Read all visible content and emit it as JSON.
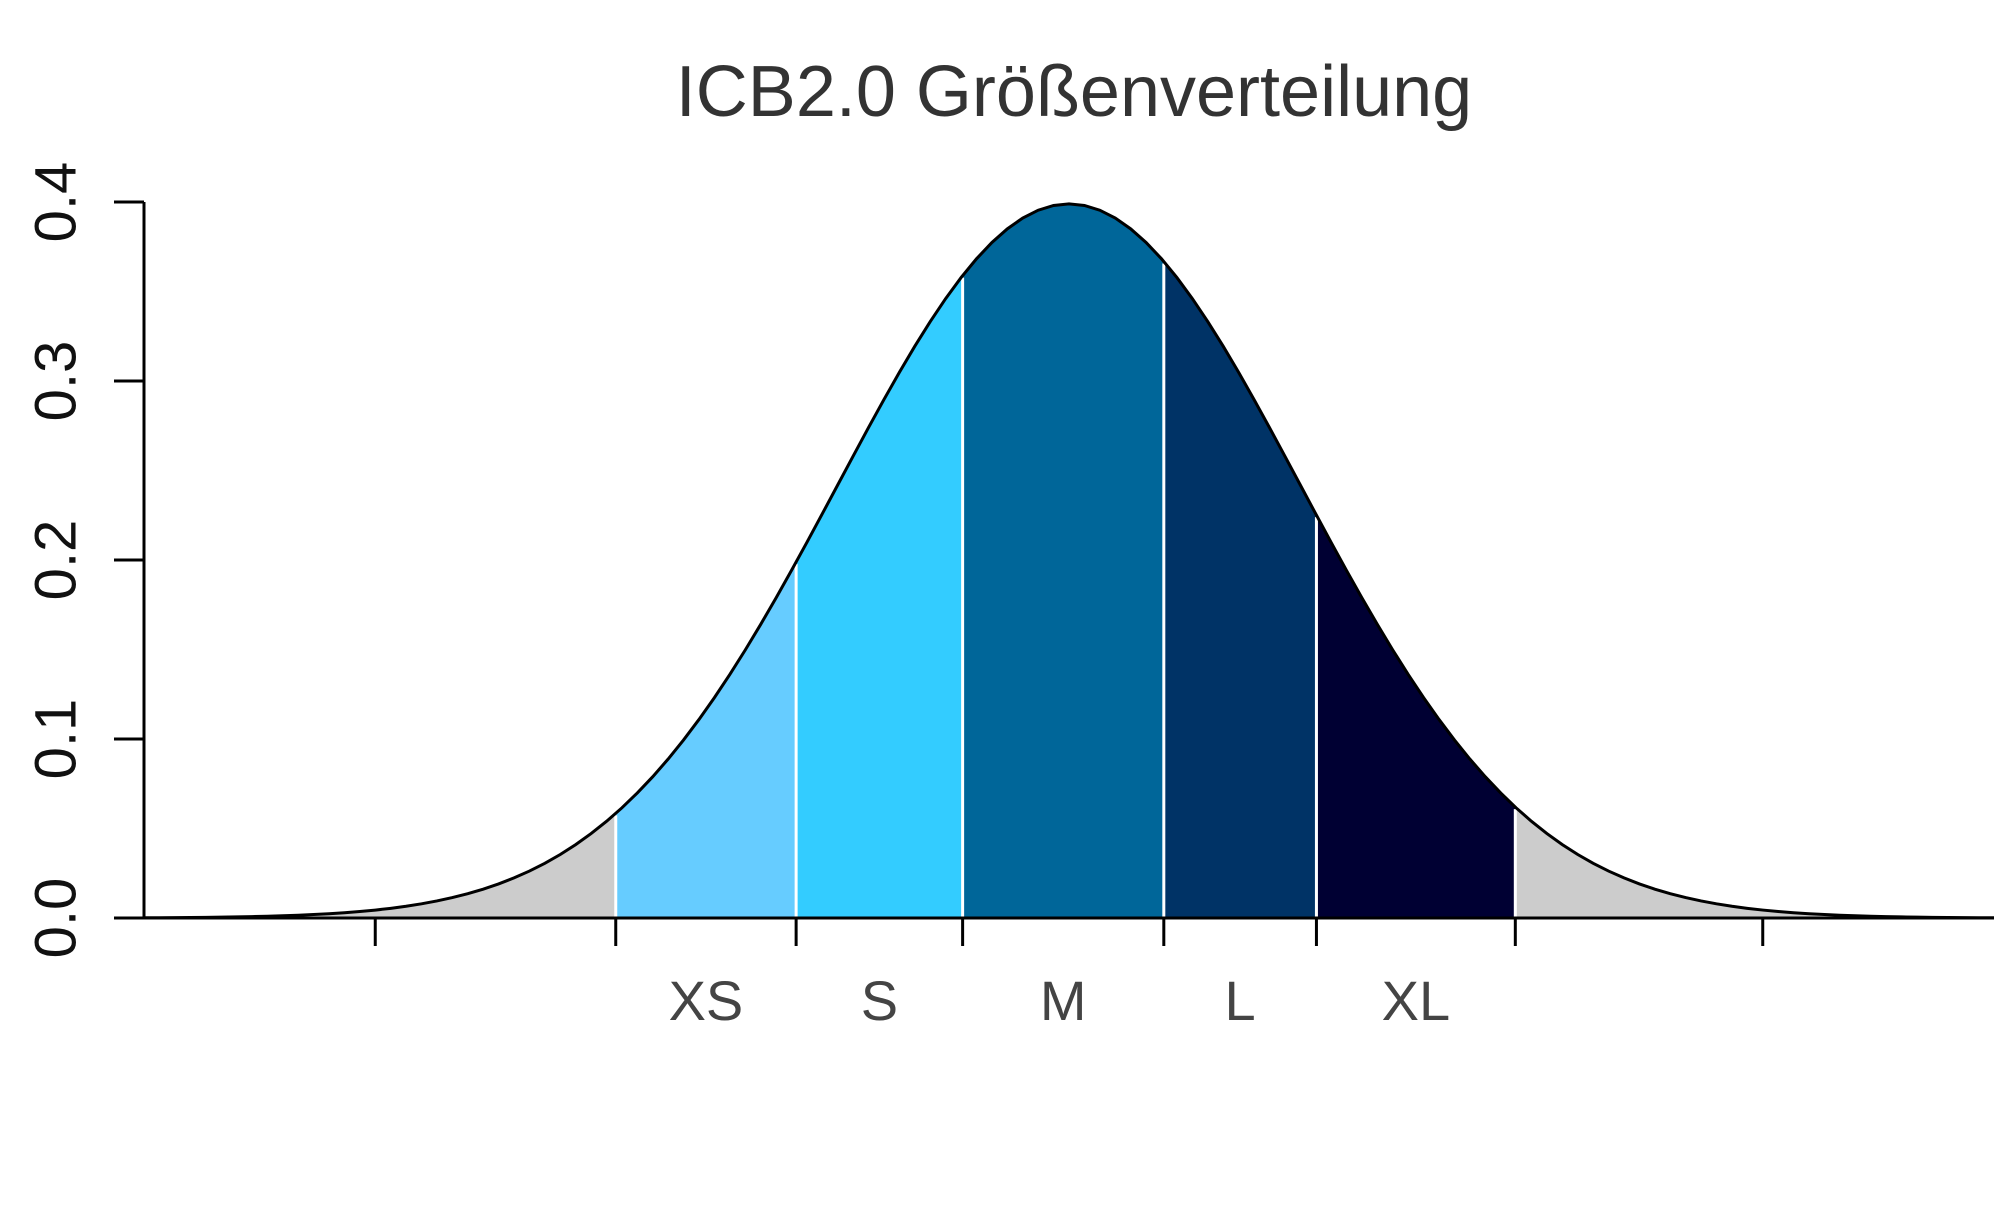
{
  "chart_data": {
    "type": "density",
    "title": "ICB2.0 Größenverteilung",
    "mean": 0,
    "sd": 1,
    "categories": [
      "XS",
      "S",
      "M",
      "L",
      "XL"
    ],
    "bins": [
      -1.96,
      -1.18,
      -0.46,
      0.41,
      1.07,
      1.93
    ],
    "colors": [
      "#66ccff",
      "#33ccff",
      "#006699",
      "#003366",
      "#000033"
    ],
    "tail_color": "#cccccc",
    "xlim": [
      -4,
      4
    ],
    "xticks": [
      -3,
      -1.96,
      -1.18,
      -0.46,
      0.41,
      1.07,
      1.93,
      3
    ],
    "ylim": [
      0,
      0.4
    ],
    "yticks": [
      {
        "value": 0,
        "label": "0.0"
      },
      0.1,
      0.2,
      0.3,
      0.4
    ]
  }
}
